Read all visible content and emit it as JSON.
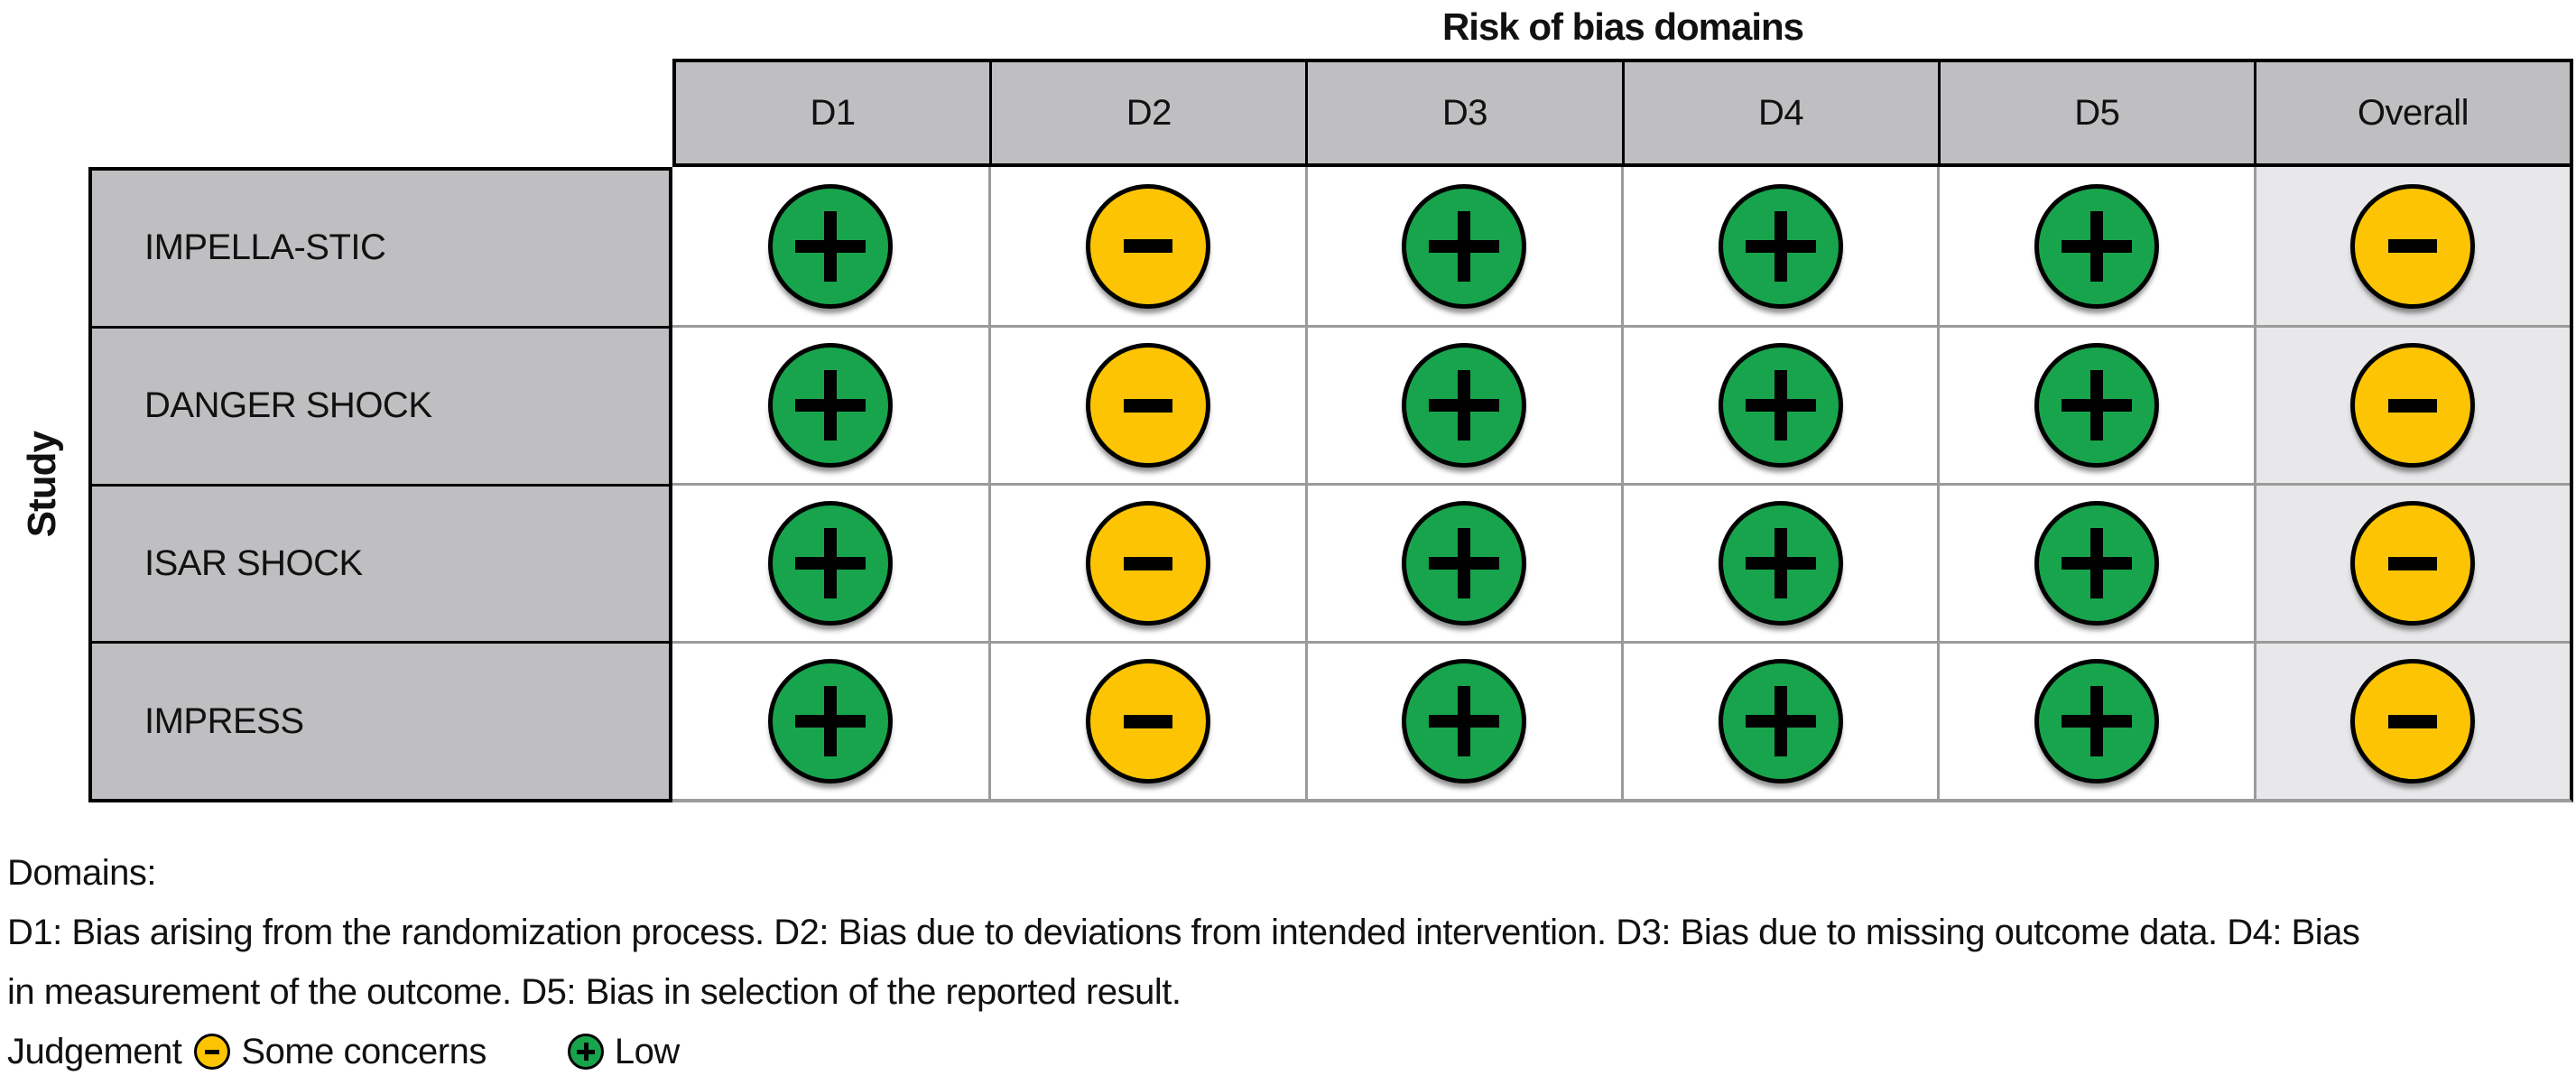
{
  "figure": {
    "title": "Risk of bias domains",
    "y_axis_label": "Study"
  },
  "colors": {
    "low": "#18A44C",
    "some_concerns": "#FDC403",
    "header_bg": "#BFBFC1",
    "overall_col_bg": "#E8E8EA",
    "grid_line": "#9B9B9B",
    "border": "#000000",
    "symbol": "#000000"
  },
  "chart_data": {
    "type": "heatmap",
    "title": "Risk of bias domains",
    "x_categories": [
      "D1",
      "D2",
      "D3",
      "D4",
      "D5",
      "Overall"
    ],
    "y_axis_label": "Study",
    "y_categories": [
      "IMPELLA-STIC",
      "DANGER SHOCK",
      "ISAR SHOCK",
      "IMPRESS"
    ],
    "values": [
      [
        "Low",
        "Some concerns",
        "Low",
        "Low",
        "Low",
        "Some concerns"
      ],
      [
        "Low",
        "Some concerns",
        "Low",
        "Low",
        "Low",
        "Some concerns"
      ],
      [
        "Low",
        "Some concerns",
        "Low",
        "Low",
        "Low",
        "Some concerns"
      ],
      [
        "Low",
        "Some concerns",
        "Low",
        "Low",
        "Low",
        "Some concerns"
      ]
    ],
    "symbol_map": {
      "Low": "+",
      "Some concerns": "−"
    },
    "legend_position": "bottom"
  },
  "footer": {
    "domains_heading": "Domains:",
    "domains_description": "D1: Bias arising from the randomization process. D2: Bias due to deviations from intended intervention. D3: Bias due to missing outcome data. D4: Bias in measurement of the outcome. D5: Bias in selection of the reported result.",
    "judgement_label": "Judgement",
    "legend": [
      {
        "judgement": "Some concerns",
        "symbol": "−",
        "color_key": "some_concerns"
      },
      {
        "judgement": "Low",
        "symbol": "+",
        "color_key": "low"
      }
    ]
  }
}
